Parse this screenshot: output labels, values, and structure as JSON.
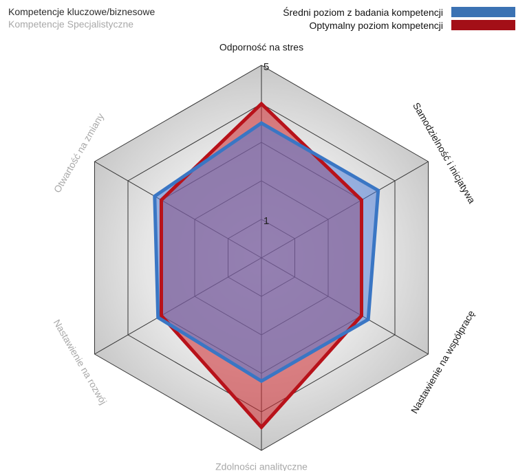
{
  "legend": {
    "categories": [
      {
        "label": "Kompetencje kluczowe/biznesowe",
        "color": "#2b2b2b"
      },
      {
        "label": "Kompetencje Specjalistyczne",
        "color": "#a8a8a8"
      }
    ]
  },
  "chart_data": {
    "type": "radar",
    "axes": [
      {
        "label": "Odporność na stres",
        "group": "kluczowe"
      },
      {
        "label": "Samodzielność i inicjatywa",
        "group": "kluczowe"
      },
      {
        "label": "Nastawienie na współpracę",
        "group": "kluczowe"
      },
      {
        "label": "Zdolności analityczne",
        "group": "specjalistyczne"
      },
      {
        "label": "Nastawienie na rozwój",
        "group": "specjalistyczne"
      },
      {
        "label": "Otwartość na zmiany",
        "group": "specjalistyczne"
      }
    ],
    "tick_labels": [
      {
        "label": "1",
        "value": 1
      },
      {
        "label": "5",
        "value": 5
      }
    ],
    "rmin": 0,
    "rmax": 5,
    "rings": [
      1,
      2,
      3,
      4,
      5
    ],
    "series": [
      {
        "name": "Średni poziom z badania kompetencji",
        "color": "#3a76c4",
        "values": [
          3.5,
          3.5,
          3.2,
          3.2,
          3.1,
          3.2
        ]
      },
      {
        "name": "Optymalny poziom kompetencji",
        "color": "#b8121a",
        "values": [
          4.0,
          3.0,
          3.0,
          4.4,
          3.0,
          3.0
        ]
      }
    ],
    "legend_position": "top-right"
  }
}
